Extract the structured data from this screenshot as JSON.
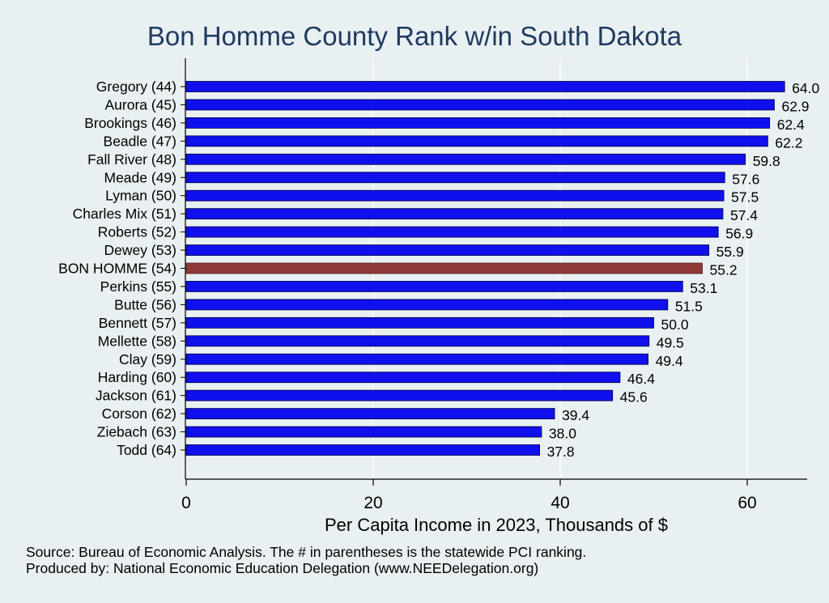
{
  "chart_data": {
    "type": "bar",
    "orientation": "horizontal",
    "title": "Bon Homme County Rank w/in South Dakota",
    "xlabel": "Per Capita Income in 2023, Thousands of $",
    "ylabel": "",
    "xlim": [
      0,
      66.3
    ],
    "xticks": [
      0,
      20,
      40,
      60
    ],
    "grid": true,
    "categories": [
      "Gregory (44)",
      "Aurora (45)",
      "Brookings (46)",
      "Beadle (47)",
      "Fall River (48)",
      "Meade (49)",
      "Lyman (50)",
      "Charles Mix (51)",
      "Roberts (52)",
      "Dewey (53)",
      "BON HOMME (54)",
      "Perkins (55)",
      "Butte (56)",
      "Bennett (57)",
      "Mellette (58)",
      "Clay (59)",
      "Harding (60)",
      "Jackson (61)",
      "Corson (62)",
      "Ziebach (63)",
      "Todd (64)"
    ],
    "values": [
      64.0,
      62.9,
      62.4,
      62.2,
      59.8,
      57.6,
      57.5,
      57.4,
      56.9,
      55.9,
      55.2,
      53.1,
      51.5,
      50.0,
      49.5,
      49.4,
      46.4,
      45.6,
      39.4,
      38.0,
      37.8
    ],
    "value_labels": [
      "64.0",
      "62.9",
      "62.4",
      "62.2",
      "59.8",
      "57.6",
      "57.5",
      "57.4",
      "56.9",
      "55.9",
      "55.2",
      "53.1",
      "51.5",
      "50.0",
      "49.5",
      "49.4",
      "46.4",
      "45.6",
      "39.4",
      "38.0",
      "37.8"
    ],
    "highlight_category": "BON HOMME (54)",
    "colors": {
      "bar": "#1010ee",
      "highlight": "#8f3a3a",
      "grid": "#ffffff",
      "background": "#e9f0f2",
      "title": "#1e3a5f"
    }
  },
  "notes": {
    "source": "Source: Bureau of Economic Analysis. The # in parentheses is the statewide PCI ranking.",
    "producer": "Produced by: National Economic Education Delegation (www.NEEDelegation.org)"
  }
}
